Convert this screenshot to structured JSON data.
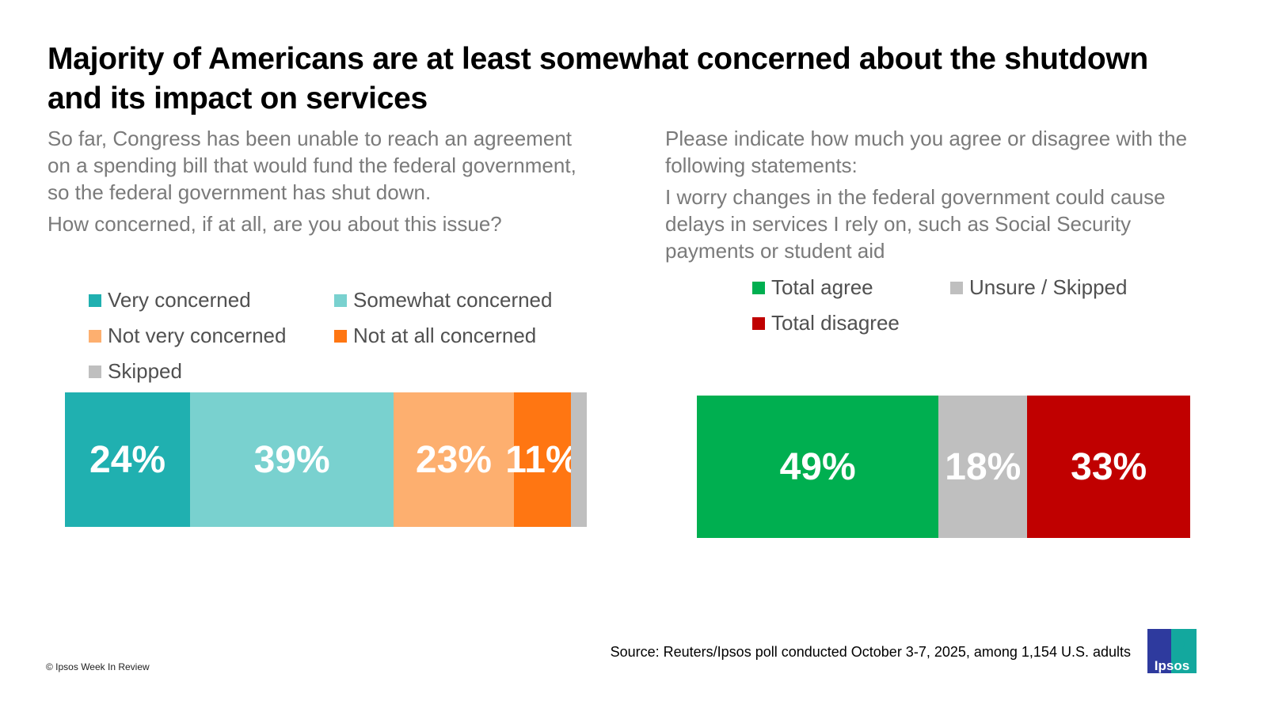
{
  "title": "Majority of Americans are at least somewhat concerned about the shutdown and its impact on services",
  "left_panel": {
    "question_lines": [
      "So far, Congress has been unable to reach an agreement on a spending bill that would fund the federal government, so the  federal government has shut down.",
      "How concerned, if at all, are you about this issue?"
    ]
  },
  "right_panel": {
    "question_lines": [
      "Please indicate how much you agree or disagree with the following statements:",
      "I worry changes in the federal government could cause delays in services I rely on, such as Social Security payments or student aid"
    ]
  },
  "chart_data": [
    {
      "type": "bar",
      "orientation": "horizontal-stacked",
      "title": "How concerned, if at all, are you about this issue?",
      "categories": [
        "Very concerned",
        "Somewhat concerned",
        "Not very concerned",
        "Not at all concerned",
        "Skipped"
      ],
      "values": [
        24,
        39,
        23,
        11,
        3
      ],
      "labels": [
        "24%",
        "39%",
        "23%",
        "11%",
        ""
      ],
      "colors": [
        "#20b0b0",
        "#79d1cf",
        "#fdaf6f",
        "#ff7612",
        "#bfbfbf"
      ],
      "unit": "%",
      "legend_position": "top",
      "grid": false
    },
    {
      "type": "bar",
      "orientation": "horizontal-stacked",
      "title": "I worry changes in the federal government could cause delays in services I rely on, such as Social Security payments or student aid",
      "categories": [
        "Total agree",
        "Unsure / Skipped",
        "Total disagree"
      ],
      "values": [
        49,
        18,
        33
      ],
      "labels": [
        "49%",
        "18%",
        "33%"
      ],
      "colors": [
        "#00af50",
        "#bfbfbf",
        "#c00000"
      ],
      "unit": "%",
      "legend_position": "top",
      "grid": false
    }
  ],
  "footer": {
    "source": "Source: Reuters/Ipsos poll conducted October 3-7, 2025, among 1,154 U.S. adults",
    "copyright": "© Ipsos Week In Review",
    "logo_text": "Ipsos"
  }
}
